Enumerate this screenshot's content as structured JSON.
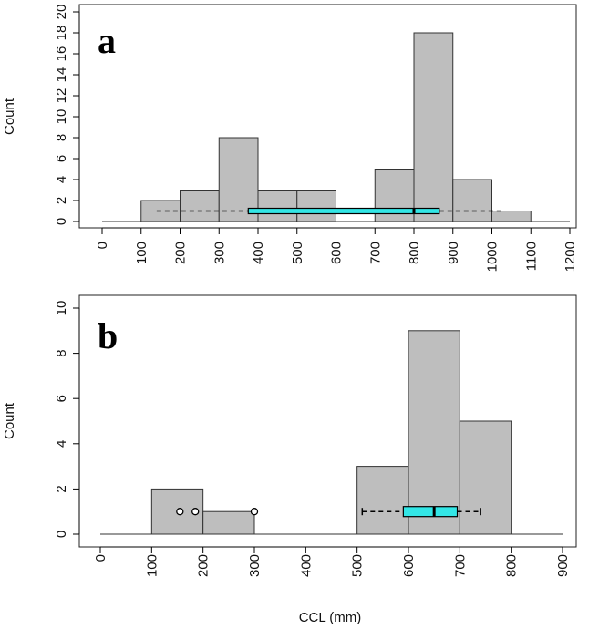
{
  "chart_data": [
    {
      "type": "bar",
      "panel_label": "a",
      "title": "",
      "xlabel": "",
      "ylabel": "Count",
      "xlim": [
        0,
        1200
      ],
      "ylim": [
        0,
        20
      ],
      "x_ticks": [
        "0",
        "100",
        "200",
        "300",
        "400",
        "500",
        "600",
        "700",
        "800",
        "900",
        "1000",
        "1100",
        "1200"
      ],
      "y_ticks": [
        "0",
        "2",
        "4",
        "6",
        "8",
        "10",
        "12",
        "14",
        "16",
        "18",
        "20"
      ],
      "bins": [
        [
          100,
          200
        ],
        [
          200,
          300
        ],
        [
          300,
          400
        ],
        [
          400,
          500
        ],
        [
          500,
          600
        ],
        [
          600,
          700
        ],
        [
          700,
          800
        ],
        [
          800,
          900
        ],
        [
          900,
          1000
        ],
        [
          1000,
          1100
        ]
      ],
      "values": [
        2,
        3,
        8,
        3,
        3,
        0,
        5,
        18,
        4,
        1
      ],
      "boxplot": {
        "whisker_low": 140,
        "q1": 375,
        "median": 800,
        "q3": 865,
        "whisker_high": 1030,
        "outliers": [],
        "at_count": 1,
        "color": "#33e6e6"
      }
    },
    {
      "type": "bar",
      "panel_label": "b",
      "title": "",
      "xlabel": "CCL (mm)",
      "ylabel": "Count",
      "xlim": [
        0,
        900
      ],
      "ylim": [
        0,
        10
      ],
      "x_ticks": [
        "0",
        "100",
        "200",
        "300",
        "400",
        "500",
        "600",
        "700",
        "800",
        "900"
      ],
      "y_ticks": [
        "0",
        "2",
        "4",
        "6",
        "8",
        "10"
      ],
      "bins": [
        [
          100,
          200
        ],
        [
          200,
          300
        ],
        [
          300,
          400
        ],
        [
          400,
          500
        ],
        [
          500,
          600
        ],
        [
          600,
          700
        ],
        [
          700,
          800
        ]
      ],
      "values": [
        2,
        1,
        0,
        0,
        3,
        9,
        5
      ],
      "boxplot": {
        "whisker_low": 510,
        "q1": 590,
        "median": 650,
        "q3": 695,
        "whisker_high": 740,
        "outliers": [
          155,
          185,
          300
        ],
        "at_count": 1,
        "color": "#33e6e6"
      }
    }
  ],
  "colors": {
    "bar_fill": "#bebebe",
    "bar_stroke": "#333333",
    "box_fill": "#33e6e6"
  }
}
